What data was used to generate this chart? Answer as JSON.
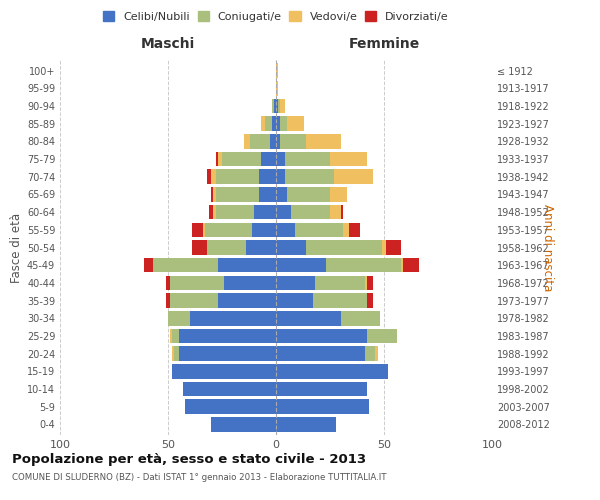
{
  "age_groups": [
    "0-4",
    "5-9",
    "10-14",
    "15-19",
    "20-24",
    "25-29",
    "30-34",
    "35-39",
    "40-44",
    "45-49",
    "50-54",
    "55-59",
    "60-64",
    "65-69",
    "70-74",
    "75-79",
    "80-84",
    "85-89",
    "90-94",
    "95-99",
    "100+"
  ],
  "birth_years": [
    "2008-2012",
    "2003-2007",
    "1998-2002",
    "1993-1997",
    "1988-1992",
    "1983-1987",
    "1978-1982",
    "1973-1977",
    "1968-1972",
    "1963-1967",
    "1958-1962",
    "1953-1957",
    "1948-1952",
    "1943-1947",
    "1938-1942",
    "1933-1937",
    "1928-1932",
    "1923-1927",
    "1918-1922",
    "1913-1917",
    "≤ 1912"
  ],
  "colors": {
    "celibe": "#4472C4",
    "coniugato": "#AABF7E",
    "vedovo": "#F0C060",
    "divorziato": "#CC2222"
  },
  "maschi": {
    "celibe": [
      30,
      42,
      43,
      48,
      45,
      45,
      40,
      27,
      24,
      27,
      14,
      11,
      10,
      8,
      8,
      7,
      3,
      2,
      1,
      0,
      0
    ],
    "coniugato": [
      0,
      0,
      0,
      0,
      2,
      3,
      10,
      22,
      25,
      30,
      18,
      22,
      18,
      20,
      20,
      18,
      9,
      3,
      1,
      0,
      0
    ],
    "vedovo": [
      0,
      0,
      0,
      0,
      1,
      1,
      0,
      0,
      0,
      0,
      0,
      1,
      1,
      1,
      2,
      2,
      3,
      2,
      0,
      0,
      0
    ],
    "divorziato": [
      0,
      0,
      0,
      0,
      0,
      0,
      0,
      2,
      2,
      4,
      7,
      5,
      2,
      1,
      2,
      1,
      0,
      0,
      0,
      0,
      0
    ]
  },
  "femmine": {
    "celibe": [
      28,
      43,
      42,
      52,
      41,
      42,
      30,
      17,
      18,
      23,
      14,
      9,
      7,
      5,
      4,
      4,
      2,
      2,
      1,
      0,
      0
    ],
    "coniugato": [
      0,
      0,
      0,
      0,
      5,
      14,
      18,
      25,
      23,
      35,
      35,
      22,
      18,
      20,
      23,
      21,
      12,
      3,
      1,
      0,
      0
    ],
    "vedovo": [
      0,
      0,
      0,
      0,
      1,
      0,
      0,
      0,
      1,
      1,
      2,
      3,
      5,
      8,
      18,
      17,
      16,
      8,
      2,
      1,
      1
    ],
    "divorziato": [
      0,
      0,
      0,
      0,
      0,
      0,
      0,
      3,
      3,
      7,
      7,
      5,
      1,
      0,
      0,
      0,
      0,
      0,
      0,
      0,
      0
    ]
  },
  "xlim": 100,
  "title": "Popolazione per età, sesso e stato civile - 2013",
  "subtitle": "COMUNE DI SLUDERNO (BZ) - Dati ISTAT 1° gennaio 2013 - Elaborazione TUTTITALIA.IT",
  "ylabel_left": "Fasce di età",
  "ylabel_right": "Anni di nascita",
  "xlabel_left": "Maschi",
  "xlabel_right": "Femmine",
  "legend_labels": [
    "Celibi/Nubili",
    "Coniugati/e",
    "Vedovi/e",
    "Divorziati/e"
  ],
  "background_color": "#ffffff",
  "grid_color": "#cccccc"
}
